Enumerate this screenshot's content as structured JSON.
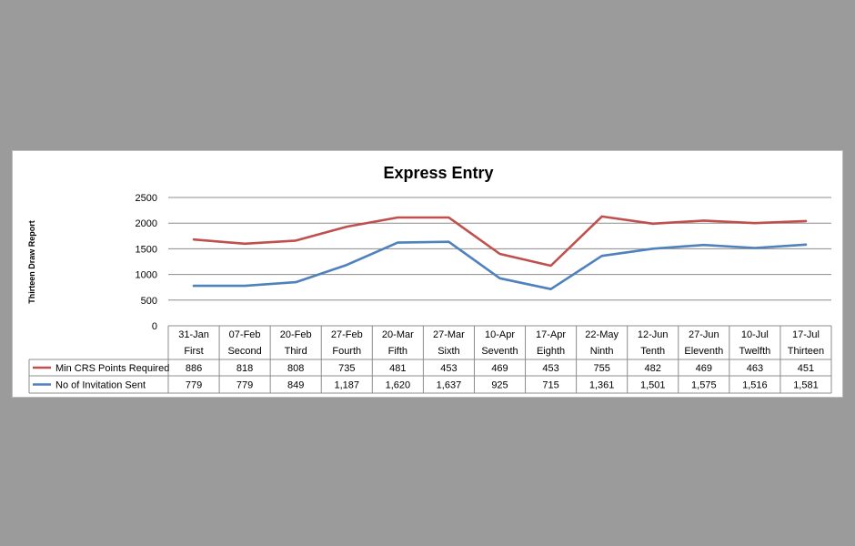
{
  "chart_data": {
    "type": "line",
    "title": "Express Entry",
    "ylabel": "Thirteen Draw Report",
    "ylim": [
      0,
      2500
    ],
    "yticks": [
      "0",
      "500",
      "1000",
      "1500",
      "2000",
      "2500"
    ],
    "grid": true,
    "categories": [
      "31-Jan",
      "07-Feb",
      "20-Feb",
      "27-Feb",
      "20-Mar",
      "27-Mar",
      "10-Apr",
      "17-Apr",
      "22-May",
      "12-Jun",
      "27-Jun",
      "10-Jul",
      "17-Jul"
    ],
    "subcategories": [
      "First",
      "Second",
      "Third",
      "Fourth",
      "Fifth",
      "Sixth",
      "Seventh",
      "Eighth",
      "Ninth",
      "Tenth",
      "Eleventh",
      "Twelfth",
      "Thirteen"
    ],
    "legend_position": "data-table",
    "series": [
      {
        "name": "Min CRS Points Required",
        "color": "#c0504d",
        "values": [
          1680,
          1600,
          1660,
          1930,
          2110,
          2110,
          1400,
          1170,
          2130,
          1990,
          2050,
          2000,
          2040
        ],
        "labels": [
          "886",
          "818",
          "808",
          "735",
          "481",
          "453",
          "469",
          "453",
          "755",
          "482",
          "469",
          "463",
          "451"
        ]
      },
      {
        "name": "No of Invitation Sent",
        "color": "#4f81bd",
        "values": [
          779,
          779,
          849,
          1187,
          1620,
          1637,
          925,
          715,
          1361,
          1501,
          1575,
          1516,
          1581
        ],
        "labels": [
          "779",
          "779",
          "849",
          "1,187",
          "1,620",
          "1,637",
          "925",
          "715",
          "1,361",
          "1,501",
          "1,575",
          "1,516",
          "1,581"
        ]
      }
    ]
  }
}
